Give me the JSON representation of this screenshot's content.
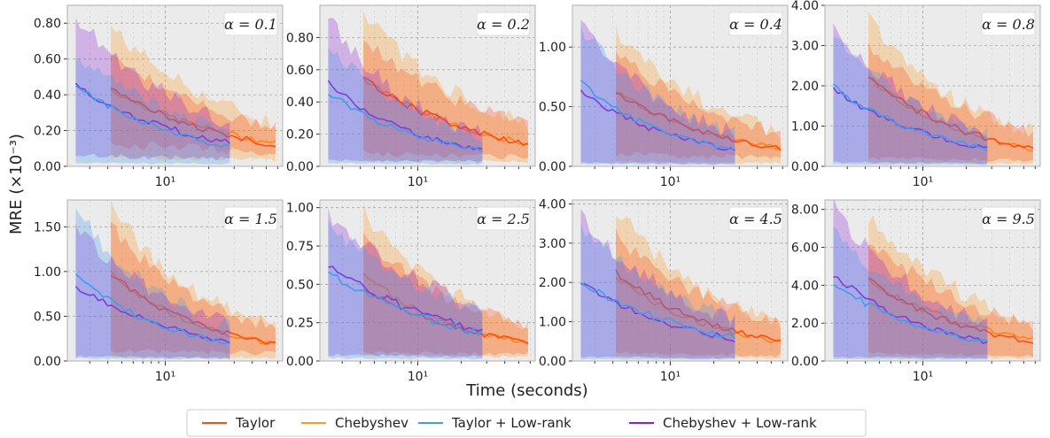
{
  "figure": {
    "ylabel": "MRE (×10⁻³)",
    "xlabel": "Time (seconds)",
    "xtick_label": "10¹",
    "colors": {
      "Taylor": "#ff4d12",
      "Chebyshev": "#ff9a1f",
      "Taylor + Low-rank": "#3f9cf0",
      "Chebyshev + Low-rank": "#8e1fd6",
      "panel_bg": "#ebebeb",
      "grid": "#a8a8a8"
    },
    "legend": [
      "Taylor",
      "Chebyshev",
      "Taylor + Low-rank",
      "Chebyshev + Low-rank"
    ]
  },
  "chart_data": [
    {
      "type": "line",
      "title": "α = 0.1",
      "xscale": "log",
      "xlim": [
        2.1,
        65
      ],
      "ylim": [
        0,
        0.9
      ],
      "yticks": [
        "0.00",
        "0.20",
        "0.40",
        "0.60",
        "0.80"
      ],
      "ytick_values": [
        0,
        0.2,
        0.4,
        0.6,
        0.8
      ],
      "series": [
        {
          "name": "Taylor",
          "t0": 4.2,
          "t1": 58,
          "start": 0.43,
          "end": 0.12,
          "band": [
            0.12,
            0.62
          ]
        },
        {
          "name": "Chebyshev",
          "t0": 4.2,
          "t1": 58,
          "start": 0.43,
          "end": 0.13,
          "band": [
            0.05,
            0.78
          ]
        },
        {
          "name": "Taylor + Low-rank",
          "t0": 2.4,
          "t1": 28,
          "start": 0.46,
          "end": 0.11,
          "band": [
            0.02,
            0.62
          ]
        },
        {
          "name": "Chebyshev + Low-rank",
          "t0": 2.4,
          "t1": 28,
          "start": 0.45,
          "end": 0.13,
          "band": [
            0.06,
            0.84
          ]
        }
      ]
    },
    {
      "type": "line",
      "title": "α = 0.2",
      "xscale": "log",
      "xlim": [
        2.1,
        65
      ],
      "ylim": [
        0,
        1.0
      ],
      "yticks": [
        "0.00",
        "0.20",
        "0.40",
        "0.60",
        "0.80"
      ],
      "ytick_values": [
        0,
        0.2,
        0.4,
        0.6,
        0.8
      ],
      "series": [
        {
          "name": "Taylor",
          "t0": 4.2,
          "t1": 58,
          "start": 0.55,
          "end": 0.14,
          "band": [
            0.08,
            0.78
          ]
        },
        {
          "name": "Chebyshev",
          "t0": 4.2,
          "t1": 58,
          "start": 0.55,
          "end": 0.14,
          "band": [
            0.04,
            0.95
          ]
        },
        {
          "name": "Taylor + Low-rank",
          "t0": 2.4,
          "t1": 28,
          "start": 0.46,
          "end": 0.1,
          "band": [
            0.02,
            0.75
          ]
        },
        {
          "name": "Chebyshev + Low-rank",
          "t0": 2.4,
          "t1": 28,
          "start": 0.52,
          "end": 0.1,
          "band": [
            0.04,
            0.92
          ]
        }
      ]
    },
    {
      "type": "line",
      "title": "α = 0.4",
      "xscale": "log",
      "xlim": [
        2.1,
        65
      ],
      "ylim": [
        0,
        1.35
      ],
      "yticks": [
        "0.00",
        "0.50",
        "1.00"
      ],
      "ytick_values": [
        0,
        0.5,
        1.0
      ],
      "series": [
        {
          "name": "Taylor",
          "t0": 4.2,
          "t1": 58,
          "start": 0.62,
          "end": 0.15,
          "band": [
            0.1,
            0.95
          ]
        },
        {
          "name": "Chebyshev",
          "t0": 4.2,
          "t1": 58,
          "start": 0.62,
          "end": 0.15,
          "band": [
            0.04,
            1.15
          ]
        },
        {
          "name": "Taylor + Low-rank",
          "t0": 2.4,
          "t1": 28,
          "start": 0.7,
          "end": 0.14,
          "band": [
            0.02,
            1.18
          ]
        },
        {
          "name": "Chebyshev + Low-rank",
          "t0": 2.4,
          "t1": 28,
          "start": 0.63,
          "end": 0.14,
          "band": [
            0.03,
            1.22
          ]
        }
      ]
    },
    {
      "type": "line",
      "title": "α = 0.8",
      "xscale": "log",
      "xlim": [
        2.1,
        65
      ],
      "ylim": [
        0,
        4.0
      ],
      "yticks": [
        "0.00",
        "1.00",
        "2.00",
        "3.00",
        "4.00"
      ],
      "ytick_values": [
        0,
        1,
        2,
        3,
        4
      ],
      "series": [
        {
          "name": "Taylor",
          "t0": 4.2,
          "t1": 58,
          "start": 2.25,
          "end": 0.45,
          "band": [
            0.2,
            3.0
          ]
        },
        {
          "name": "Chebyshev",
          "t0": 4.2,
          "t1": 58,
          "start": 2.25,
          "end": 0.42,
          "band": [
            0.1,
            3.7
          ]
        },
        {
          "name": "Taylor + Low-rank",
          "t0": 2.4,
          "t1": 28,
          "start": 2.0,
          "end": 0.45,
          "band": [
            0.05,
            3.2
          ]
        },
        {
          "name": "Chebyshev + Low-rank",
          "t0": 2.4,
          "t1": 28,
          "start": 1.95,
          "end": 0.45,
          "band": [
            0.1,
            3.5
          ]
        }
      ]
    },
    {
      "type": "line",
      "title": "α = 1.5",
      "xscale": "log",
      "xlim": [
        2.1,
        65
      ],
      "ylim": [
        0,
        1.8
      ],
      "yticks": [
        "0.00",
        "0.50",
        "1.00",
        "1.50"
      ],
      "ytick_values": [
        0,
        0.5,
        1.0,
        1.5
      ],
      "series": [
        {
          "name": "Taylor",
          "t0": 4.2,
          "t1": 58,
          "start": 0.98,
          "end": 0.19,
          "band": [
            0.12,
            1.5
          ]
        },
        {
          "name": "Chebyshev",
          "t0": 4.2,
          "t1": 58,
          "start": 0.98,
          "end": 0.19,
          "band": [
            0.05,
            1.72
          ]
        },
        {
          "name": "Taylor + Low-rank",
          "t0": 2.4,
          "t1": 28,
          "start": 0.96,
          "end": 0.2,
          "band": [
            0.03,
            1.68
          ]
        },
        {
          "name": "Chebyshev + Low-rank",
          "t0": 2.4,
          "t1": 28,
          "start": 0.84,
          "end": 0.22,
          "band": [
            0.05,
            1.5
          ]
        }
      ]
    },
    {
      "type": "line",
      "title": "α = 2.5",
      "xscale": "log",
      "xlim": [
        2.1,
        65
      ],
      "ylim": [
        0,
        1.05
      ],
      "yticks": [
        "0.00",
        "0.25",
        "0.50",
        "0.75",
        "1.00"
      ],
      "ytick_values": [
        0,
        0.25,
        0.5,
        0.75,
        1.0
      ],
      "series": [
        {
          "name": "Taylor",
          "t0": 4.2,
          "t1": 58,
          "start": 0.48,
          "end": 0.12,
          "band": [
            0.06,
            0.8
          ]
        },
        {
          "name": "Chebyshev",
          "t0": 4.2,
          "t1": 58,
          "start": 0.56,
          "end": 0.12,
          "band": [
            0.04,
            0.98
          ]
        },
        {
          "name": "Taylor + Low-rank",
          "t0": 2.4,
          "t1": 28,
          "start": 0.58,
          "end": 0.18,
          "band": [
            0.02,
            0.9
          ]
        },
        {
          "name": "Chebyshev + Low-rank",
          "t0": 2.4,
          "t1": 28,
          "start": 0.62,
          "end": 0.2,
          "band": [
            0.04,
            0.96
          ]
        }
      ]
    },
    {
      "type": "line",
      "title": "α = 4.5",
      "xscale": "log",
      "xlim": [
        2.1,
        65
      ],
      "ylim": [
        0,
        4.1
      ],
      "yticks": [
        "0.00",
        "1.00",
        "2.00",
        "3.00",
        "4.00"
      ],
      "ytick_values": [
        0,
        1,
        2,
        3,
        4
      ],
      "series": [
        {
          "name": "Taylor",
          "t0": 4.2,
          "t1": 58,
          "start": 2.25,
          "end": 0.5,
          "band": [
            0.2,
            3.2
          ]
        },
        {
          "name": "Chebyshev",
          "t0": 4.2,
          "t1": 58,
          "start": 2.1,
          "end": 0.48,
          "band": [
            0.1,
            3.9
          ]
        },
        {
          "name": "Taylor + Low-rank",
          "t0": 2.4,
          "t1": 28,
          "start": 2.0,
          "end": 0.6,
          "band": [
            0.05,
            3.4
          ]
        },
        {
          "name": "Chebyshev + Low-rank",
          "t0": 2.4,
          "t1": 28,
          "start": 2.0,
          "end": 0.55,
          "band": [
            0.1,
            3.7
          ]
        }
      ]
    },
    {
      "type": "line",
      "title": "α = 9.5",
      "xscale": "log",
      "xlim": [
        2.1,
        65
      ],
      "ylim": [
        0,
        8.5
      ],
      "yticks": [
        "0.00",
        "2.00",
        "4.00",
        "6.00",
        "8.00"
      ],
      "ytick_values": [
        0,
        2,
        4,
        6,
        8
      ],
      "series": [
        {
          "name": "Taylor",
          "t0": 4.2,
          "t1": 58,
          "start": 4.3,
          "end": 1.0,
          "band": [
            0.4,
            6.5
          ]
        },
        {
          "name": "Chebyshev",
          "t0": 4.2,
          "t1": 58,
          "start": 4.3,
          "end": 1.1,
          "band": [
            0.2,
            7.6
          ]
        },
        {
          "name": "Taylor + Low-rank",
          "t0": 2.4,
          "t1": 28,
          "start": 4.1,
          "end": 1.0,
          "band": [
            0.1,
            6.8
          ]
        },
        {
          "name": "Chebyshev + Low-rank",
          "t0": 2.4,
          "t1": 28,
          "start": 4.6,
          "end": 1.0,
          "band": [
            0.2,
            8.2
          ]
        }
      ]
    }
  ]
}
